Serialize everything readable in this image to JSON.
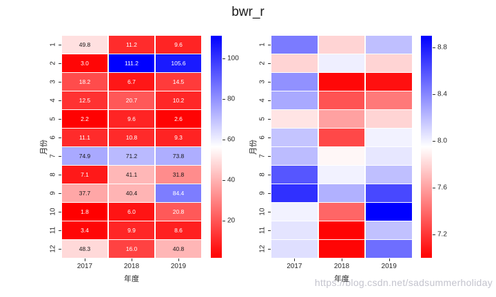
{
  "title": "bwr_r",
  "watermark": "https://blog.csdn.net/sadsummerholiday",
  "colors": {
    "cmap_low": "#ff0000",
    "cmap_mid": "#ffffff",
    "cmap_high": "#0000ff",
    "tick_text": "#262626",
    "annot_dark": "#151515",
    "annot_light": "#ffffff",
    "watermark_text": "#b9b9c4"
  },
  "chart_data": [
    {
      "type": "heatmap",
      "name": "monthly-values-annotated",
      "colormap": "bwr_r",
      "annotated": true,
      "xlabel": "年度",
      "ylabel": "月份",
      "x_categories": [
        "2017",
        "2018",
        "2019"
      ],
      "y_categories": [
        "1",
        "2",
        "3",
        "4",
        "5",
        "6",
        "7",
        "8",
        "9",
        "10",
        "11",
        "12"
      ],
      "vmin": 1.8,
      "vmax": 111.2,
      "colorbar_ticks": [
        {
          "label": "100",
          "value": 100
        },
        {
          "label": "80",
          "value": 80
        },
        {
          "label": "60",
          "value": 60
        },
        {
          "label": "40",
          "value": 40
        },
        {
          "label": "20",
          "value": 20
        }
      ],
      "values": [
        [
          49.8,
          11.2,
          9.6
        ],
        [
          3.0,
          111.2,
          105.6
        ],
        [
          18.2,
          6.7,
          14.5
        ],
        [
          12.5,
          20.7,
          10.2
        ],
        [
          2.2,
          9.6,
          2.6
        ],
        [
          11.1,
          10.8,
          9.3
        ],
        [
          74.9,
          71.2,
          73.8
        ],
        [
          7.1,
          41.1,
          31.8
        ],
        [
          37.7,
          40.4,
          84.4
        ],
        [
          1.8,
          6.0,
          20.8
        ],
        [
          3.4,
          9.9,
          8.6
        ],
        [
          48.3,
          16.0,
          40.8
        ]
      ]
    },
    {
      "type": "heatmap",
      "name": "monthly-values-unannotated",
      "colormap": "bwr_r",
      "annotated": false,
      "xlabel": "年度",
      "ylabel": "月份",
      "x_categories": [
        "2017",
        "2018",
        "2019"
      ],
      "y_categories": [
        "1",
        "2",
        "3",
        "4",
        "5",
        "6",
        "7",
        "8",
        "9",
        "10",
        "11",
        "12"
      ],
      "vmin": 7.0,
      "vmax": 8.9,
      "colorbar_ticks": [
        {
          "label": "8.8",
          "value": 8.8
        },
        {
          "label": "8.4",
          "value": 8.4
        },
        {
          "label": "8.0",
          "value": 8.0
        },
        {
          "label": "7.6",
          "value": 7.6
        },
        {
          "label": "7.2",
          "value": 7.2
        }
      ],
      "values": [
        [
          8.44,
          7.79,
          8.19
        ],
        [
          7.79,
          8.01,
          7.79
        ],
        [
          8.36,
          7.03,
          7.06
        ],
        [
          8.27,
          7.31,
          7.45
        ],
        [
          7.85,
          7.6,
          7.79
        ],
        [
          8.17,
          7.27,
          8.0
        ],
        [
          8.2,
          7.92,
          8.04
        ],
        [
          8.58,
          8.0,
          8.19
        ],
        [
          8.72,
          8.24,
          8.63
        ],
        [
          8.0,
          7.38,
          8.9
        ],
        [
          8.05,
          7.01,
          8.18
        ],
        [
          8.07,
          7.02,
          8.49
        ]
      ]
    }
  ]
}
